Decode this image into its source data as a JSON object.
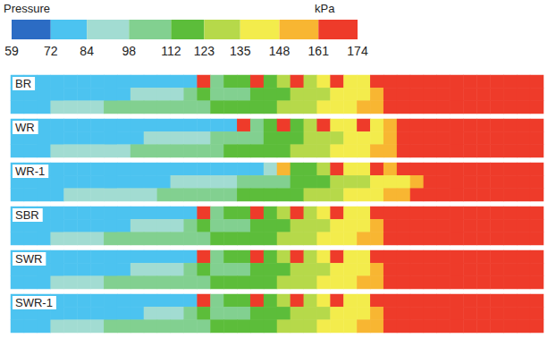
{
  "chart_data": {
    "type": "heatmap",
    "colorbar": {
      "title": "Pressure",
      "unit": "kPa",
      "range": [
        59,
        174
      ],
      "ticks": [
        59,
        72,
        84,
        98,
        112,
        123,
        135,
        148,
        161,
        174
      ],
      "colors": [
        "#2c6cc4",
        "#4cc3f0",
        "#a2dcd2",
        "#82d090",
        "#5cbd3a",
        "#b6d94a",
        "#f3ec4c",
        "#f8b632",
        "#ee3b2a"
      ]
    },
    "panels": [
      {
        "label": "BR",
        "pressure": [
          [
            78,
            78,
            78,
            78,
            78,
            78,
            78,
            78,
            78,
            78,
            78,
            78,
            78,
            78,
            170,
            105,
            115,
            118,
            165,
            120,
            125,
            166,
            130,
            140,
            168,
            142,
            145,
            170,
            163,
            170,
            163,
            170,
            163,
            170,
            163,
            170,
            163,
            170,
            163,
            170
          ],
          [
            78,
            78,
            78,
            78,
            78,
            78,
            78,
            78,
            78,
            90,
            90,
            90,
            90,
            108,
            112,
            108,
            108,
            110,
            118,
            118,
            118,
            128,
            128,
            128,
            140,
            140,
            140,
            150,
            163,
            163,
            163,
            163,
            163,
            163,
            163,
            163,
            163,
            163,
            163,
            163
          ],
          [
            78,
            78,
            78,
            92,
            92,
            92,
            92,
            110,
            110,
            110,
            110,
            110,
            110,
            110,
            110,
            118,
            118,
            118,
            118,
            118,
            130,
            130,
            130,
            142,
            142,
            142,
            152,
            152,
            165,
            165,
            165,
            165,
            165,
            165,
            165,
            165,
            165,
            165,
            165,
            165
          ]
        ]
      },
      {
        "label": "WR",
        "pressure": [
          [
            78,
            78,
            78,
            78,
            78,
            78,
            78,
            78,
            78,
            78,
            78,
            78,
            78,
            78,
            78,
            78,
            78,
            170,
            110,
            118,
            165,
            122,
            128,
            168,
            135,
            142,
            168,
            145,
            150,
            170,
            163,
            170,
            163,
            170,
            163,
            170,
            163,
            170,
            163,
            170
          ],
          [
            78,
            78,
            78,
            78,
            78,
            78,
            78,
            78,
            78,
            78,
            90,
            90,
            90,
            90,
            90,
            105,
            105,
            105,
            105,
            116,
            116,
            116,
            126,
            126,
            126,
            140,
            140,
            140,
            152,
            163,
            163,
            163,
            163,
            163,
            163,
            163,
            163,
            163,
            163,
            163
          ],
          [
            78,
            78,
            78,
            92,
            92,
            92,
            92,
            92,
            92,
            108,
            108,
            108,
            108,
            108,
            108,
            108,
            118,
            118,
            118,
            118,
            118,
            130,
            130,
            130,
            142,
            142,
            142,
            152,
            152,
            165,
            165,
            165,
            165,
            165,
            165,
            165,
            165,
            165,
            165,
            165
          ]
        ]
      },
      {
        "label": "WR-1",
        "pressure": [
          [
            78,
            78,
            78,
            78,
            78,
            78,
            78,
            78,
            78,
            78,
            78,
            78,
            78,
            78,
            78,
            78,
            78,
            78,
            78,
            95,
            155,
            115,
            120,
            128,
            166,
            135,
            142,
            168,
            148,
            163,
            170,
            163,
            170,
            163,
            170,
            163,
            170,
            163,
            170,
            163
          ],
          [
            78,
            78,
            78,
            78,
            78,
            78,
            78,
            78,
            78,
            78,
            78,
            78,
            90,
            90,
            90,
            90,
            90,
            105,
            105,
            105,
            105,
            116,
            116,
            116,
            126,
            126,
            126,
            140,
            140,
            140,
            152,
            163,
            163,
            163,
            163,
            163,
            163,
            163,
            163,
            163
          ],
          [
            78,
            78,
            78,
            78,
            92,
            92,
            92,
            92,
            92,
            92,
            92,
            108,
            108,
            108,
            108,
            108,
            108,
            118,
            118,
            118,
            118,
            118,
            130,
            130,
            130,
            142,
            142,
            142,
            152,
            152,
            165,
            165,
            165,
            165,
            165,
            165,
            165,
            165,
            165,
            165
          ]
        ]
      },
      {
        "label": "SBR",
        "pressure": [
          [
            78,
            78,
            78,
            78,
            78,
            78,
            78,
            78,
            78,
            78,
            78,
            78,
            78,
            78,
            170,
            110,
            115,
            118,
            165,
            120,
            125,
            166,
            130,
            140,
            168,
            142,
            145,
            170,
            163,
            170,
            163,
            170,
            163,
            170,
            163,
            170,
            163,
            170,
            163,
            170
          ],
          [
            78,
            78,
            78,
            78,
            78,
            78,
            78,
            78,
            78,
            90,
            90,
            90,
            90,
            108,
            112,
            108,
            108,
            110,
            118,
            118,
            118,
            128,
            128,
            128,
            140,
            140,
            140,
            150,
            163,
            163,
            163,
            163,
            163,
            163,
            163,
            163,
            163,
            163,
            163,
            163
          ],
          [
            78,
            78,
            78,
            92,
            92,
            92,
            92,
            110,
            110,
            110,
            110,
            110,
            110,
            110,
            110,
            118,
            118,
            118,
            118,
            118,
            130,
            130,
            130,
            142,
            142,
            142,
            152,
            152,
            165,
            165,
            165,
            165,
            165,
            165,
            165,
            165,
            165,
            165,
            165,
            165
          ]
        ]
      },
      {
        "label": "SWR",
        "pressure": [
          [
            78,
            78,
            78,
            78,
            78,
            78,
            78,
            78,
            78,
            78,
            78,
            78,
            78,
            78,
            170,
            110,
            112,
            118,
            165,
            120,
            125,
            166,
            130,
            140,
            168,
            142,
            145,
            170,
            163,
            170,
            163,
            170,
            163,
            170,
            163,
            170,
            163,
            170,
            163,
            170
          ],
          [
            78,
            78,
            78,
            78,
            78,
            78,
            78,
            78,
            78,
            90,
            90,
            90,
            90,
            108,
            112,
            108,
            108,
            110,
            118,
            118,
            118,
            128,
            128,
            128,
            140,
            140,
            140,
            150,
            163,
            163,
            163,
            163,
            163,
            163,
            163,
            163,
            163,
            163,
            163,
            163
          ],
          [
            78,
            78,
            78,
            92,
            92,
            92,
            92,
            110,
            110,
            110,
            110,
            110,
            110,
            110,
            110,
            118,
            118,
            118,
            118,
            118,
            130,
            130,
            130,
            142,
            142,
            142,
            152,
            152,
            165,
            165,
            165,
            165,
            165,
            165,
            165,
            165,
            165,
            165,
            165,
            165
          ]
        ]
      },
      {
        "label": "SWR-1",
        "pressure": [
          [
            78,
            78,
            78,
            78,
            78,
            78,
            78,
            78,
            78,
            78,
            78,
            78,
            78,
            78,
            170,
            108,
            115,
            118,
            165,
            120,
            125,
            166,
            130,
            140,
            168,
            142,
            145,
            170,
            163,
            170,
            163,
            170,
            163,
            170,
            163,
            170,
            163,
            170,
            163,
            170
          ],
          [
            78,
            78,
            78,
            78,
            78,
            78,
            78,
            78,
            78,
            78,
            90,
            90,
            90,
            108,
            112,
            108,
            108,
            110,
            118,
            118,
            118,
            128,
            128,
            128,
            140,
            140,
            140,
            150,
            163,
            163,
            163,
            163,
            163,
            163,
            163,
            163,
            163,
            163,
            163,
            163
          ],
          [
            78,
            78,
            78,
            92,
            92,
            92,
            92,
            110,
            110,
            110,
            110,
            110,
            110,
            110,
            110,
            118,
            118,
            118,
            118,
            118,
            130,
            130,
            130,
            142,
            142,
            142,
            152,
            152,
            165,
            165,
            165,
            165,
            165,
            165,
            165,
            165,
            165,
            165,
            165,
            165
          ]
        ]
      }
    ]
  }
}
